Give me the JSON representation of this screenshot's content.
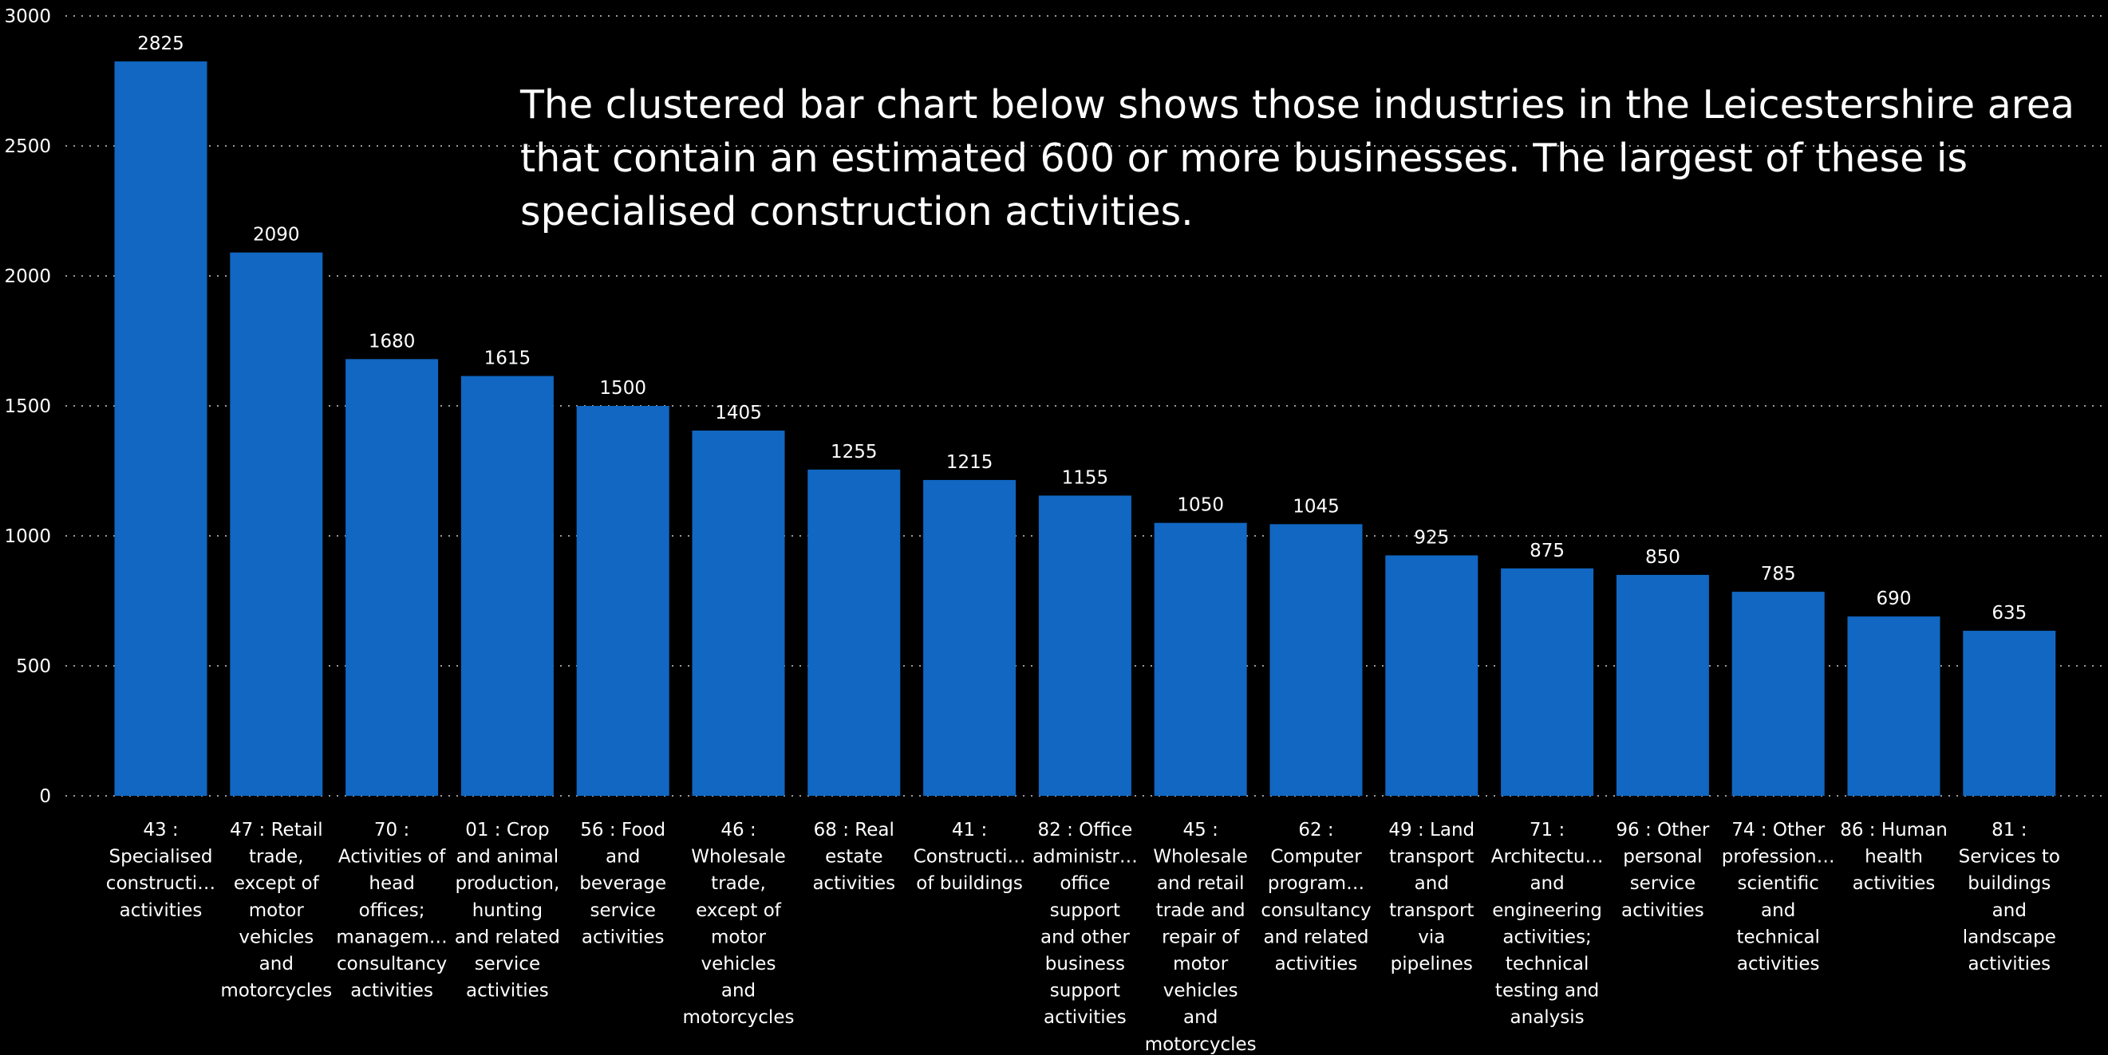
{
  "colors": {
    "background": "#000000",
    "bar": "#1167C2",
    "text": "#FFFFFF",
    "grid": "#9A9A9A"
  },
  "annotation": {
    "lines": [
      "The clustered bar chart below shows those industries in the Leicestershire area",
      "that contain an estimated 600 or more businesses.  The largest of these is",
      "specialised construction activities."
    ]
  },
  "chart_data": {
    "type": "bar",
    "title": "",
    "xlabel": "",
    "ylabel": "",
    "ylim": [
      0,
      3000
    ],
    "yticks": [
      0,
      500,
      1000,
      1500,
      2000,
      2500,
      3000
    ],
    "grid": true,
    "legend": "none",
    "categories": [
      "43 : Specialised constructi… activities",
      "47 : Retail trade, except of motor vehicles and motorcycles",
      "70 : Activities of head offices; managem… consultancy activities",
      "01 : Crop and animal production, hunting and related service activities",
      "56 : Food and beverage service activities",
      "46 : Wholesale trade, except of motor vehicles and motorcycles",
      "68 : Real estate activities",
      "41 : Constructi… of buildings",
      "82 : Office administr… office support and other business support activities",
      "45 : Wholesale and retail trade and repair of motor vehicles and motorcycles",
      "62 : Computer program… consultancy and related activities",
      "49 : Land transport and transport via pipelines",
      "71 : Architectu… and engineering activities; technical testing and analysis",
      "96 : Other personal service activities",
      "74 : Other profession… scientific and technical activities",
      "86 : Human health activities",
      "81 : Services to buildings and landscape activities"
    ],
    "category_label_lines": [
      [
        "43 :",
        "Specialised",
        "constructi…",
        "activities"
      ],
      [
        "47 : Retail",
        "trade,",
        "except of",
        "motor",
        "vehicles",
        "and",
        "motorcycles"
      ],
      [
        "70 :",
        "Activities of",
        "head",
        "offices;",
        "managem…",
        "consultancy",
        "activities"
      ],
      [
        "01 : Crop",
        "and animal",
        "production,",
        "hunting",
        "and related",
        "service",
        "activities"
      ],
      [
        "56 : Food",
        "and",
        "beverage",
        "service",
        "activities"
      ],
      [
        "46 :",
        "Wholesale",
        "trade,",
        "except of",
        "motor",
        "vehicles",
        "and",
        "motorcycles"
      ],
      [
        "68 : Real",
        "estate",
        "activities"
      ],
      [
        "41 :",
        "Constructi…",
        "of buildings"
      ],
      [
        "82 : Office",
        "administr…",
        "office",
        "support",
        "and other",
        "business",
        "support",
        "activities"
      ],
      [
        "45 :",
        "Wholesale",
        "and retail",
        "trade and",
        "repair of",
        "motor",
        "vehicles",
        "and",
        "motorcycles"
      ],
      [
        "62 :",
        "Computer",
        "program…",
        "consultancy",
        "and related",
        "activities"
      ],
      [
        "49 : Land",
        "transport",
        "and",
        "transport",
        "via",
        "pipelines"
      ],
      [
        "71 :",
        "Architectu…",
        "and",
        "engineering",
        "activities;",
        "technical",
        "testing and",
        "analysis"
      ],
      [
        "96 : Other",
        "personal",
        "service",
        "activities"
      ],
      [
        "74 : Other",
        "profession…",
        "scientific",
        "and",
        "technical",
        "activities"
      ],
      [
        "86 : Human",
        "health",
        "activities"
      ],
      [
        "81 :",
        "Services to",
        "buildings",
        "and",
        "landscape",
        "activities"
      ]
    ],
    "series": [
      {
        "values": [
          2825,
          2090,
          1680,
          1615,
          1500,
          1405,
          1255,
          1215,
          1155,
          1050,
          1045,
          925,
          875,
          850,
          785,
          690,
          635
        ]
      }
    ]
  }
}
